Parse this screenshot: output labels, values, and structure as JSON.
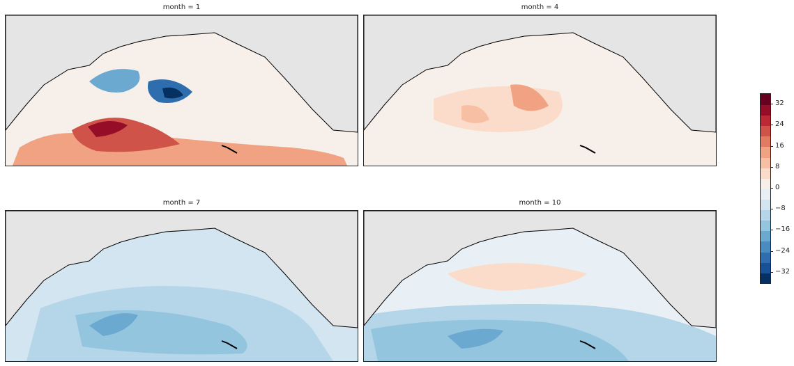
{
  "panels": [
    {
      "title": "month = 1"
    },
    {
      "title": "month = 4"
    },
    {
      "title": "month = 7"
    },
    {
      "title": "month = 10"
    }
  ],
  "colorbar": {
    "levels": [
      -36,
      -32,
      -28,
      -24,
      -20,
      -16,
      -12,
      -8,
      -4,
      0,
      4,
      8,
      12,
      16,
      20,
      24,
      28,
      32,
      36
    ],
    "colors": [
      "#053061",
      "#1a5196",
      "#2e6eae",
      "#4a8cc0",
      "#6ba9d0",
      "#93c5de",
      "#b5d6e8",
      "#d3e5f0",
      "#e9f0f5",
      "#f7efea",
      "#fbdccb",
      "#f7c0a4",
      "#f0a283",
      "#e17b62",
      "#cf5349",
      "#bb2a34",
      "#960d27",
      "#67001f"
    ],
    "tick_labels": [
      "-32",
      "-24",
      "-16",
      "-8",
      "0",
      "8",
      "16",
      "24",
      "32"
    ]
  },
  "legend_colors": {
    "land": "#e5e5e5",
    "coast": "#000000"
  }
}
